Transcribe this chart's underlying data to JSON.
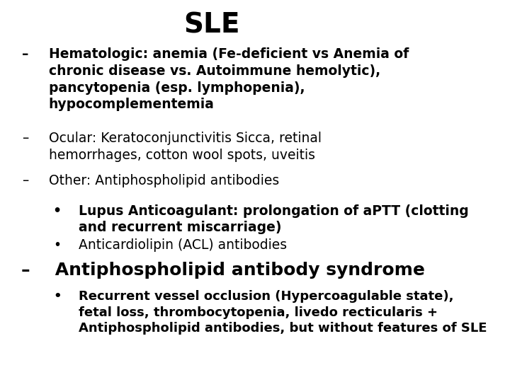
{
  "title": "SLE",
  "bg_color": "#ffffff",
  "text_color": "#000000",
  "title_fontsize": 28,
  "body_fontsize": 13.5,
  "lines": [
    {
      "indent": 0,
      "bullet": "–",
      "text": "Hematologic: anemia (Fe-deficient vs Anemia of\nchronic disease vs. Autoimmune hemolytic),\npancytopenia (esp. lymphopenia),\nhypocomplementemia",
      "bold": true,
      "fontsize": 13.5
    },
    {
      "indent": 0,
      "bullet": "–",
      "text": "Ocular: Keratoconjunctivitis Sicca, retinal\nhemorrhages, cotton wool spots, uveitis",
      "bold": false,
      "fontsize": 13.5
    },
    {
      "indent": 0,
      "bullet": "–",
      "text": "Other: Antiphospholipid antibodies",
      "bold": false,
      "fontsize": 13.5
    },
    {
      "indent": 1,
      "bullet": "•",
      "text_parts": [
        {
          "text": "Lupus Anticoagulant: prolongation of aPTT (clotting\nand recurrent miscarriage)",
          "bold": true
        }
      ],
      "fontsize": 13.5
    },
    {
      "indent": 1,
      "bullet": "•",
      "text_parts": [
        {
          "text": "Anticardiolipin (ACL) antibodies",
          "bold": false
        }
      ],
      "fontsize": 13.5
    },
    {
      "indent": 0,
      "bullet": "–",
      "text_parts": [
        {
          "text": " Antiphospholipid antibody syndrome",
          "bold": true
        }
      ],
      "fontsize": 18
    },
    {
      "indent": 1,
      "bullet": "•",
      "text_parts": [
        {
          "text": "Recurrent vessel occlusion (Hypercoagulable state),\nfetal loss, ",
          "bold": true
        },
        {
          "text": "thrombocytopenia",
          "bold": true,
          "underline": true
        },
        {
          "text": ", livedo recticularis +\nAntiphospholipid antibodies, but without features of SLE",
          "bold": false
        }
      ],
      "fontsize": 13.0
    }
  ]
}
